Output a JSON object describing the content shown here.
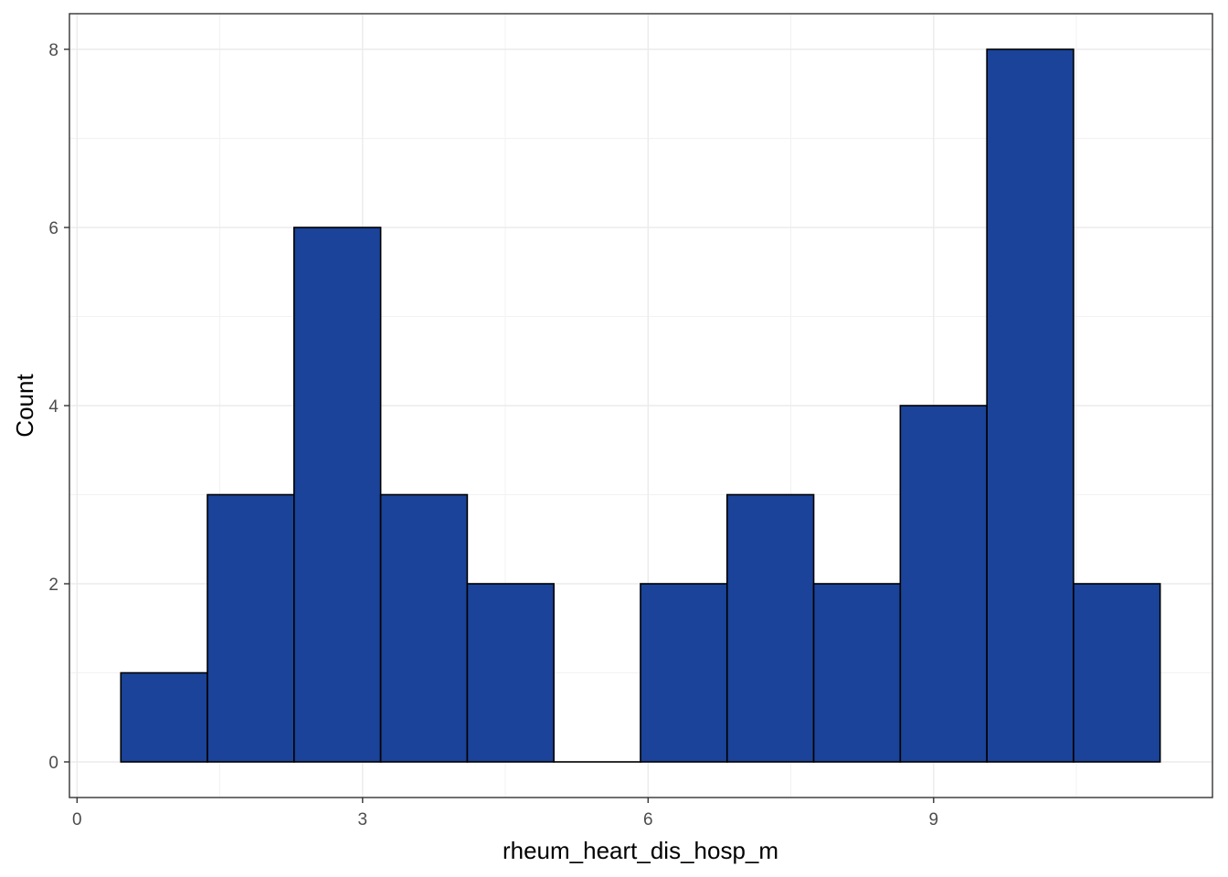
{
  "chart_data": {
    "type": "bar",
    "subtype": "histogram",
    "title": "",
    "xlabel": "rheum_heart_dis_hosp_m",
    "ylabel": "Count",
    "bin_width": 0.91,
    "bins": [
      {
        "x0": 0.46,
        "x1": 1.37,
        "count": 1
      },
      {
        "x0": 1.37,
        "x1": 2.28,
        "count": 3
      },
      {
        "x0": 2.28,
        "x1": 3.19,
        "count": 6
      },
      {
        "x0": 3.19,
        "x1": 4.1,
        "count": 3
      },
      {
        "x0": 4.1,
        "x1": 5.01,
        "count": 2
      },
      {
        "x0": 5.01,
        "x1": 5.92,
        "count": 0
      },
      {
        "x0": 5.92,
        "x1": 6.83,
        "count": 2
      },
      {
        "x0": 6.83,
        "x1": 7.74,
        "count": 3
      },
      {
        "x0": 7.74,
        "x1": 8.65,
        "count": 2
      },
      {
        "x0": 8.65,
        "x1": 9.56,
        "count": 4
      },
      {
        "x0": 9.56,
        "x1": 10.47,
        "count": 8
      },
      {
        "x0": 10.47,
        "x1": 11.38,
        "count": 2
      }
    ],
    "xlim": [
      -0.08,
      11.93
    ],
    "ylim": [
      -0.4,
      8.4
    ],
    "x_ticks": [
      0,
      3,
      6,
      9
    ],
    "x_tick_labels": [
      "0",
      "3",
      "6",
      "9"
    ],
    "y_ticks": [
      0,
      2,
      4,
      6,
      8
    ],
    "y_tick_labels": [
      "0",
      "2",
      "4",
      "6",
      "8"
    ],
    "bar_fill": "#1a4399",
    "bar_stroke": "#000000",
    "grid": true,
    "legend": "none"
  }
}
